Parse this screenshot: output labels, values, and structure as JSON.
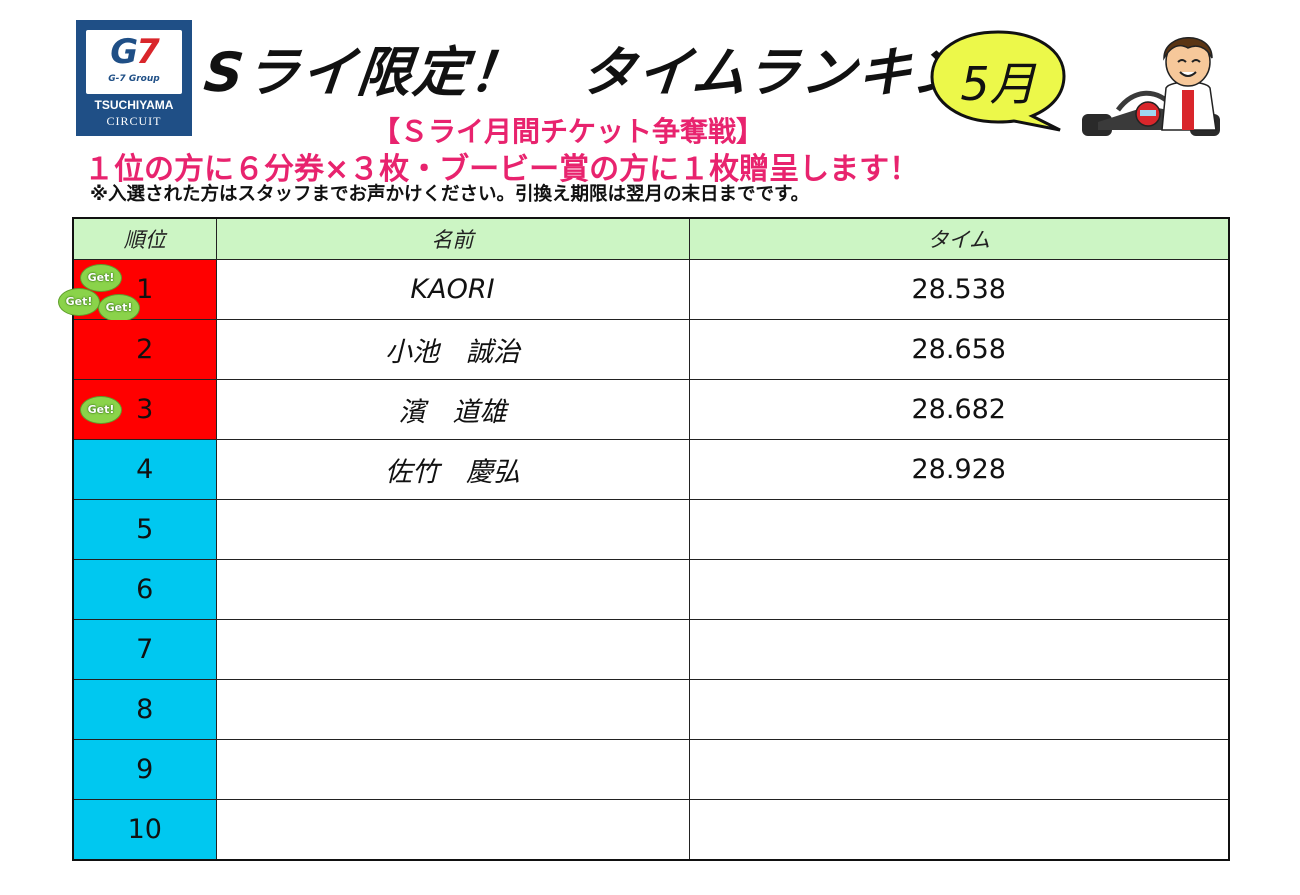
{
  "logo": {
    "g7_prefix": "G",
    "g7_suffix": "7",
    "group": "G-7 Group",
    "brand": "TSUCHIYAMA",
    "circuit": "CIRCUIT"
  },
  "title": "Sライ限定！　タイムランキング",
  "month": "5月",
  "subtitle": "【Ｓライ月間チケット争奪戦】",
  "prize_line": "１位の方に６分券×３枚・ブービー賞の方に１枚贈呈します！",
  "note_line": "※入選された方はスタッフまでお声かけください。引換え期限は翌月の末日までです。",
  "table": {
    "headers": {
      "rank": "順位",
      "name": "名前",
      "time": "タイム"
    },
    "rows": [
      {
        "rank": "1",
        "name": "KAORI",
        "time": "28.538"
      },
      {
        "rank": "2",
        "name": "小池　誠治",
        "time": "28.658"
      },
      {
        "rank": "3",
        "name": "濱　道雄",
        "time": "28.682"
      },
      {
        "rank": "4",
        "name": "佐竹　慶弘",
        "time": "28.928"
      },
      {
        "rank": "5",
        "name": "",
        "time": ""
      },
      {
        "rank": "6",
        "name": "",
        "time": ""
      },
      {
        "rank": "7",
        "name": "",
        "time": ""
      },
      {
        "rank": "8",
        "name": "",
        "time": ""
      },
      {
        "rank": "9",
        "name": "",
        "time": ""
      },
      {
        "rank": "10",
        "name": "",
        "time": ""
      }
    ]
  },
  "badge_text": "Get!",
  "colors": {
    "accent_pink": "#e8236e",
    "top_rank_red": "#ff0000",
    "other_rank_blue": "#00c8f0",
    "header_green": "#ccf5c4",
    "badge_green": "#8ad34a",
    "logo_blue": "#1f4f86"
  }
}
